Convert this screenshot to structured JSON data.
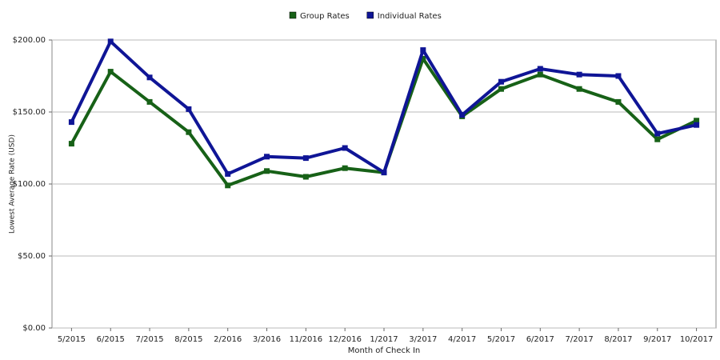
{
  "chart_data": {
    "type": "line",
    "x_label": "Month of Check In",
    "y_label": "Lowest Average Rate (USD)",
    "categories": [
      "5/2015",
      "6/2015",
      "7/2015",
      "8/2015",
      "2/2016",
      "3/2016",
      "11/2016",
      "12/2016",
      "1/2017",
      "3/2017",
      "4/2017",
      "5/2017",
      "6/2017",
      "7/2017",
      "8/2017",
      "9/2017",
      "10/2017"
    ],
    "series": [
      {
        "name": "Group Rates",
        "color": "#176117",
        "values": [
          128,
          178,
          157,
          136,
          99,
          109,
          105,
          111,
          108,
          187,
          147,
          166,
          176,
          166,
          157,
          131,
          144
        ]
      },
      {
        "name": "Individual Rates",
        "color": "#0f1596",
        "values": [
          143,
          199,
          174,
          152,
          107,
          119,
          118,
          125,
          108,
          193,
          148,
          171,
          180,
          176,
          175,
          135,
          141
        ]
      }
    ],
    "ylim": [
      0,
      200
    ],
    "yticks": [
      {
        "value": 0,
        "label": "$0.00"
      },
      {
        "value": 50,
        "label": "$50.00"
      },
      {
        "value": 100,
        "label": "$100.00"
      },
      {
        "value": 150,
        "label": "$150.00"
      },
      {
        "value": 200,
        "label": "$200.00"
      }
    ],
    "grid": true,
    "legend": "top"
  }
}
